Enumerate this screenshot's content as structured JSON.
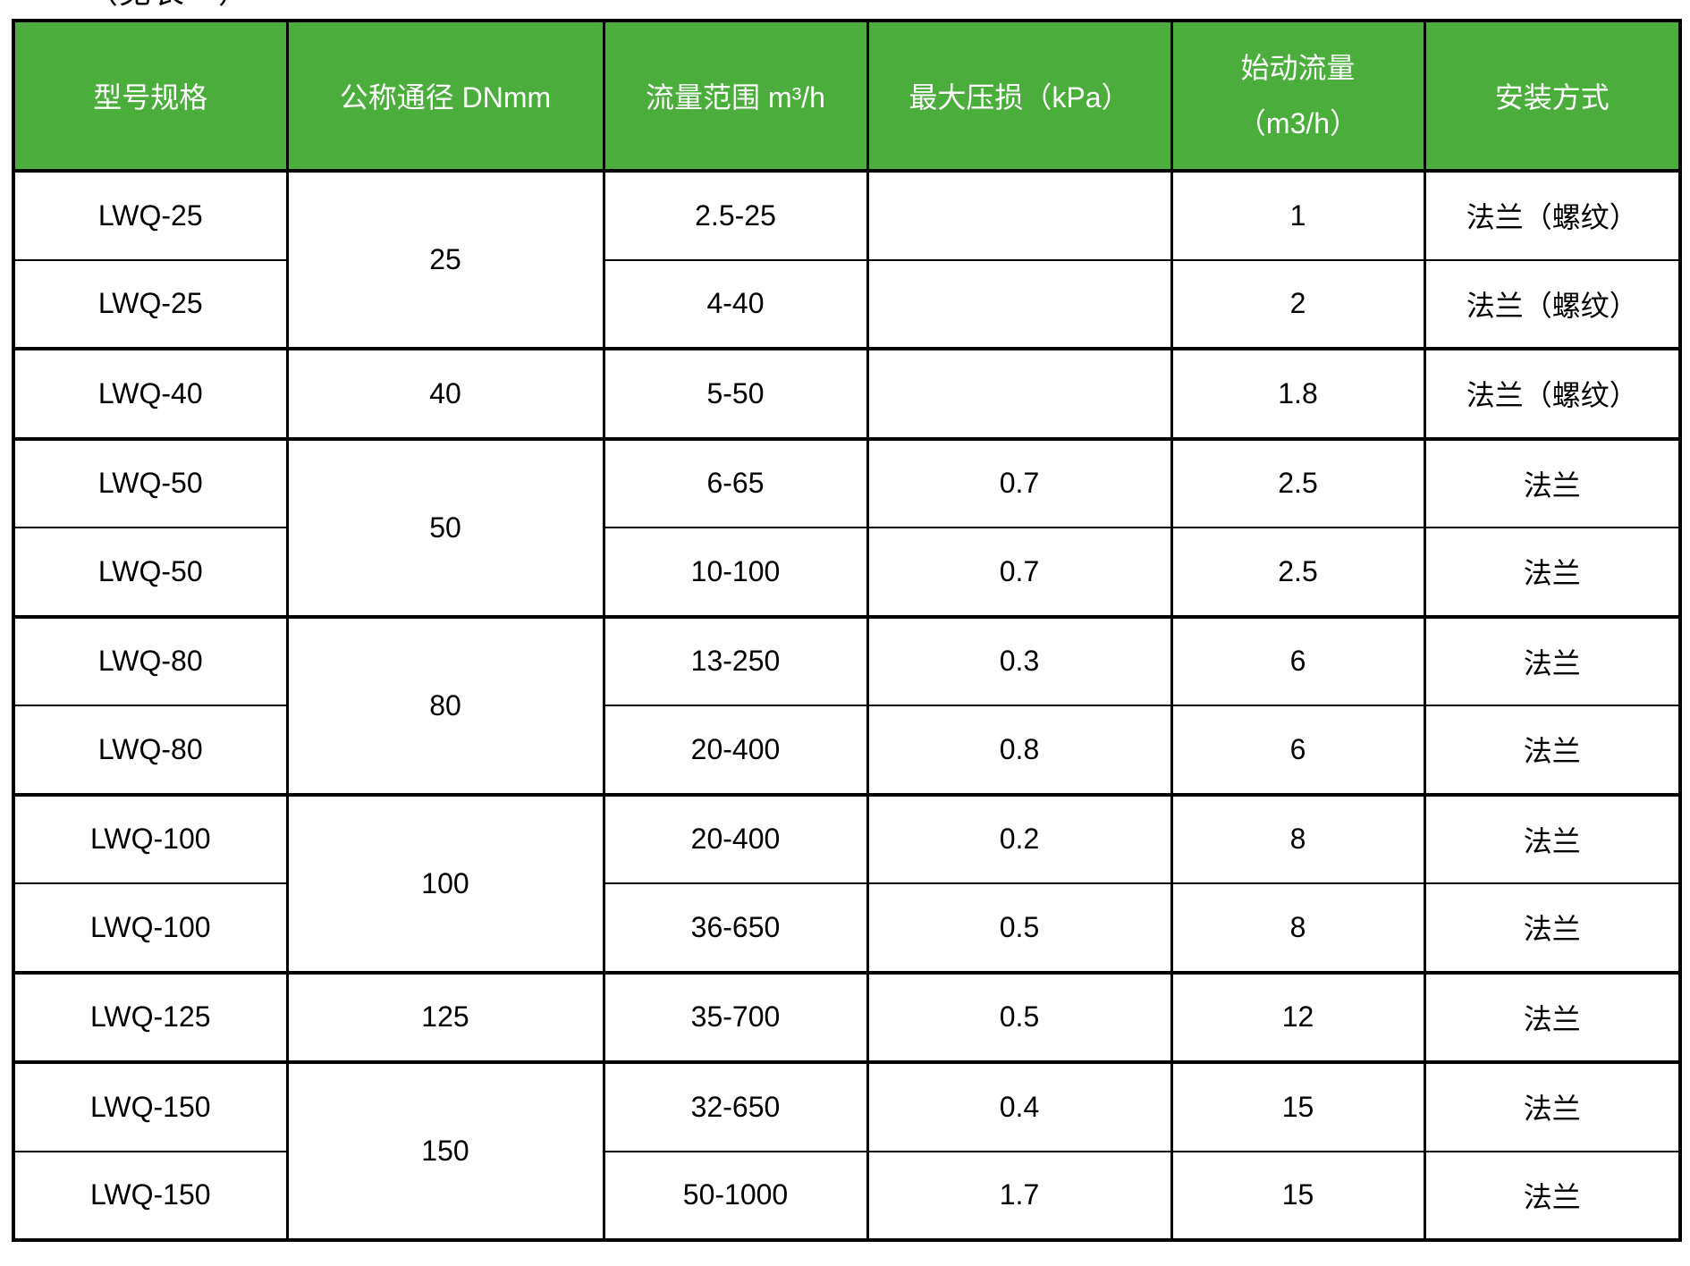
{
  "page": {
    "top_note": "（见表一）"
  },
  "table": {
    "header_bg": "#4BAD3B",
    "header_text_color": "#ffffff",
    "border_color": "#000000",
    "body_text_color": "#000000",
    "columns": [
      {
        "key": "model",
        "label": "型号规格"
      },
      {
        "key": "dn",
        "label": "公称通径 DNmm"
      },
      {
        "key": "range",
        "label": "流量范围 m³/h"
      },
      {
        "key": "ploss",
        "label": "最大压损（kPa）"
      },
      {
        "key": "start",
        "label_line1": "始动流量",
        "label_line2": "（m3/h）"
      },
      {
        "key": "install",
        "label": "安装方式"
      }
    ],
    "rows": [
      {
        "model": "LWQ-25",
        "dn": "25",
        "dn_rowspan": 2,
        "range": "2.5-25",
        "ploss": "",
        "start": "1",
        "install": "法兰（螺纹）",
        "group_start": true
      },
      {
        "model": "LWQ-25",
        "range": "4-40",
        "ploss": "",
        "start": "2",
        "install": "法兰（螺纹）"
      },
      {
        "model": "LWQ-40",
        "dn": "40",
        "dn_rowspan": 1,
        "range": "5-50",
        "ploss": "",
        "start": "1.8",
        "install": "法兰（螺纹）",
        "group_start": true
      },
      {
        "model": "LWQ-50",
        "dn": "50",
        "dn_rowspan": 2,
        "range": "6-65",
        "ploss": "0.7",
        "start": "2.5",
        "install": "法兰",
        "group_start": true
      },
      {
        "model": "LWQ-50",
        "range": "10-100",
        "ploss": "0.7",
        "start": "2.5",
        "install": "法兰"
      },
      {
        "model": "LWQ-80",
        "dn": "80",
        "dn_rowspan": 2,
        "range": "13-250",
        "ploss": "0.3",
        "start": "6",
        "install": "法兰",
        "group_start": true
      },
      {
        "model": "LWQ-80",
        "range": "20-400",
        "ploss": "0.8",
        "start": "6",
        "install": "法兰"
      },
      {
        "model": "LWQ-100",
        "dn": "100",
        "dn_rowspan": 2,
        "range": "20-400",
        "ploss": "0.2",
        "start": "8",
        "install": "法兰",
        "group_start": true
      },
      {
        "model": "LWQ-100",
        "range": "36-650",
        "ploss": "0.5",
        "start": "8",
        "install": "法兰"
      },
      {
        "model": "LWQ-125",
        "dn": "125",
        "dn_rowspan": 1,
        "range": "35-700",
        "ploss": "0.5",
        "start": "12",
        "install": "法兰",
        "group_start": true
      },
      {
        "model": "LWQ-150",
        "dn": "150",
        "dn_rowspan": 2,
        "range": "32-650",
        "ploss": "0.4",
        "start": "15",
        "install": "法兰",
        "group_start": true
      },
      {
        "model": "LWQ-150",
        "range": "50-1000",
        "ploss": "1.7",
        "start": "15",
        "install": "法兰"
      }
    ]
  }
}
